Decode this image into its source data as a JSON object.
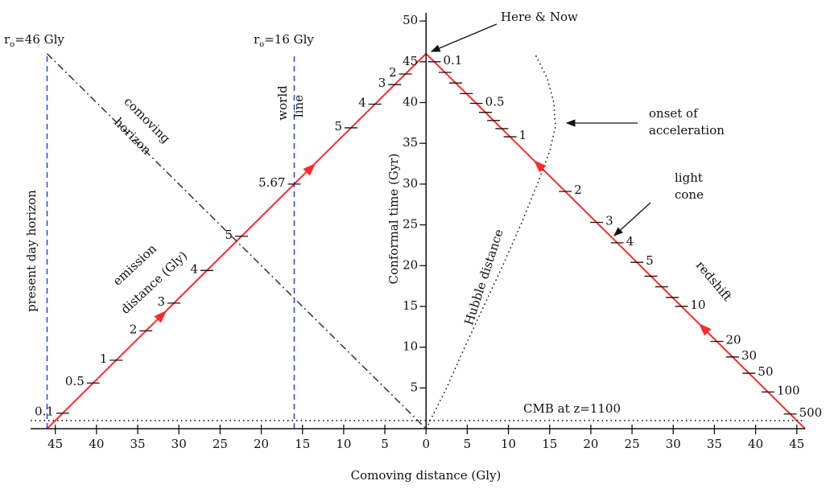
{
  "chart_data": {
    "type": "spacetime",
    "xlabel": "Comoving distance (Gly)",
    "ylabel": "Conformal time (Gyr)",
    "xlim": [
      -48,
      46
    ],
    "ylim": [
      0,
      51
    ],
    "xticks": [
      {
        "value": -45,
        "label": "45"
      },
      {
        "value": -40,
        "label": "40"
      },
      {
        "value": -35,
        "label": "35"
      },
      {
        "value": -30,
        "label": "30"
      },
      {
        "value": -25,
        "label": "25"
      },
      {
        "value": -20,
        "label": "20"
      },
      {
        "value": -15,
        "label": "15"
      },
      {
        "value": -10,
        "label": "10"
      },
      {
        "value": -5,
        "label": "5"
      },
      0,
      5,
      10,
      15,
      20,
      25,
      30,
      35,
      40,
      45
    ],
    "yticks": [
      5,
      10,
      15,
      20,
      25,
      30,
      35,
      40,
      45,
      50
    ],
    "lines": [
      {
        "x": [
          0,
          46
        ],
        "y": [
          46,
          0
        ],
        "color": "#ff2a2a",
        "style": "solid"
      },
      {
        "x": [
          -46,
          0
        ],
        "y": [
          0,
          46
        ],
        "color": "#ff2a2a",
        "style": "solid"
      },
      {
        "x": [
          -46,
          0
        ],
        "y": [
          46,
          0
        ],
        "color": "#333333",
        "style": "dashdot"
      },
      {
        "x": [
          0,
          2.5,
          4.7,
          7,
          9.3,
          11.5,
          13.5,
          15,
          15.7,
          15.5,
          14.7,
          13.2
        ],
        "y": [
          0,
          5,
          10,
          15,
          20,
          25,
          30,
          34,
          37,
          40,
          43,
          46
        ],
        "color": "#000000",
        "style": "dotted"
      },
      {
        "x": [
          -46,
          -46
        ],
        "y": [
          0,
          46
        ],
        "color": "#2a3cff",
        "style": "dashed"
      },
      {
        "x": [
          -16,
          -16
        ],
        "y": [
          0,
          46
        ],
        "color": "#2a3cff",
        "style": "dashed"
      },
      {
        "x": [
          -48,
          46
        ],
        "y": [
          1,
          1
        ],
        "color": "#000000",
        "style": "dotted"
      }
    ],
    "emission_distance_ticks": {
      "x": [
        -44.1,
        -40.4,
        -37.6,
        -34.0,
        -30.6,
        -26.6,
        -22.4,
        -16.0,
        -9.1,
        -6.2,
        -3.8,
        -2.5
      ],
      "labels": [
        0.1,
        0.5,
        1,
        2,
        3,
        4,
        5,
        5.67,
        5,
        4,
        3,
        2
      ]
    },
    "redshift_ticks": {
      "x": [
        1.0,
        2.3,
        3.6,
        4.9,
        6.1,
        7.2,
        8.2,
        9.2,
        10.2,
        16.9,
        20.7,
        23.2,
        25.6,
        27.3,
        28.6,
        29.9,
        31.0,
        35.3,
        37.2,
        39.2,
        41.5,
        44.2
      ],
      "labels": [
        0.1,
        null,
        null,
        null,
        0.5,
        null,
        null,
        null,
        1,
        2,
        3,
        4,
        5,
        null,
        null,
        null,
        10,
        20,
        30,
        50,
        100,
        500
      ]
    },
    "annotations": {
      "r_present": {
        "base": "r",
        "sub": "o",
        "rest": "=46 Gly"
      },
      "r_world": {
        "base": "r",
        "sub": "o",
        "rest": "=16 Gly"
      },
      "present_day_horizon": "present day horizon",
      "world_line": [
        "world",
        "line"
      ],
      "comoving_horizon": [
        "comoving",
        "horizon"
      ],
      "emission_distance": [
        "emission",
        "distance (Gly)"
      ],
      "here_now": "Here & Now",
      "onset": [
        "onset of",
        "acceleration"
      ],
      "light_cone": [
        "light",
        "cone"
      ],
      "redshift": "redshift",
      "hubble": "Hubble distance",
      "cmb": "CMB at z=1100"
    }
  }
}
